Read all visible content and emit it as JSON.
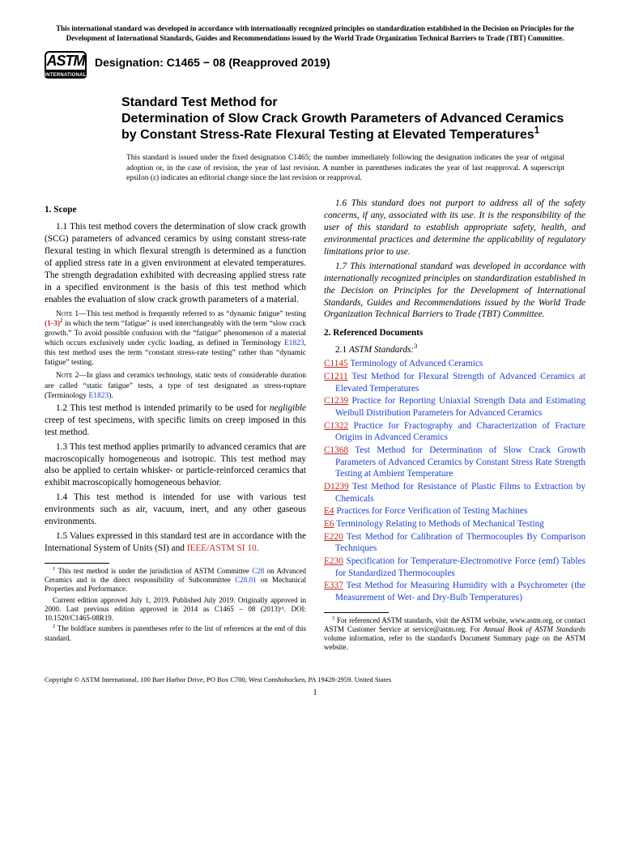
{
  "top_notice": "This international standard was developed in accordance with internationally recognized principles on standardization established in the Decision on Principles for the Development of International Standards, Guides and Recommendations issued by the World Trade Organization Technical Barriers to Trade (TBT) Committee.",
  "logo": {
    "top": "ASTM",
    "bottom": "INTERNATIONAL"
  },
  "designation": "Designation: C1465 − 08 (Reapproved 2019)",
  "title_lead": "Standard Test Method for",
  "title_main": "Determination of Slow Crack Growth Parameters of Advanced Ceramics by Constant Stress-Rate Flexural Testing at Elevated Temperatures",
  "title_sup": "1",
  "issuance": "This standard is issued under the fixed designation C1465; the number immediately following the designation indicates the year of original adoption or, in the case of revision, the year of last revision. A number in parentheses indicates the year of last reapproval. A superscript epsilon (ε) indicates an editorial change since the last revision or reapproval.",
  "sec1_head": "1. Scope",
  "p1_1": "1.1 This test method covers the determination of slow crack growth (SCG) parameters of advanced ceramics by using constant stress-rate flexural testing in which flexural strength is determined as a function of applied stress rate in a given environment at elevated temperatures. The strength degradation exhibited with decreasing applied stress rate in a specified environment is the basis of this test method which enables the evaluation of slow crack growth parameters of a material.",
  "note1_lead": "Note 1—",
  "note1_a": "This test method is frequently referred to as “dynamic fatigue” testing ",
  "note1_ref": "(1-3)",
  "note1_sup": "2",
  "note1_b": " in which the term “fatigue” is used interchangeably with the term “slow crack growth.” To avoid possible confusion with the “fatigue” phenomenon of a material which occurs exclusively under cyclic loading, as defined in Terminology ",
  "note1_link": "E1823",
  "note1_c": ", this test method uses the term “constant stress-rate testing” rather than “dynamic fatigue” testing.",
  "note2_lead": "Note 2—",
  "note2_a": "In glass and ceramics technology, static tests of considerable duration are called “static fatigue” tests, a type of test designated as stress-rupture (Terminology ",
  "note2_link": "E1823",
  "note2_b": ").",
  "p1_2a": "1.2 This test method is intended primarily to be used for ",
  "p1_2_em": "negligible",
  "p1_2b": " creep of test specimens, with specific limits on creep imposed in this test method.",
  "p1_3": "1.3 This test method applies primarily to advanced ceramics that are macroscopically homogeneous and isotropic. This test method may also be applied to certain whisker- or particle-reinforced ceramics that exhibit macroscopically homogeneous behavior.",
  "p1_4": "1.4 This test method is intended for use with various test environments such as air, vacuum, inert, and any other gaseous environments.",
  "p1_5a": "1.5 Values expressed in this standard test are in accordance with the International System of Units (SI) and ",
  "p1_5_link": "IEEE/ASTM SI 10",
  "p1_5b": ".",
  "fn1_a": " This test method is under the jurisdiction of ASTM Committee ",
  "fn1_link1": "C28",
  "fn1_b": " on Advanced Ceramics and is the direct responsibility of Subcommittee ",
  "fn1_link2": "C28.01",
  "fn1_c": " on Mechanical Properties and Performance.",
  "fn1_p2": "Current edition approved July 1, 2019. Published July 2019. Originally approved in 2000. Last previous edition approved in 2014 as C1465 – 08 (2013)ᵋ¹. DOI: 10.1520/C1465-08R19.",
  "fn2": " The boldface numbers in parentheses refer to the list of references at the end of this standard.",
  "p1_6": "1.6 This standard does not purport to address all of the safety concerns, if any, associated with its use. It is the responsibility of the user of this standard to establish appropriate safety, health, and environmental practices and determine the applicability of regulatory limitations prior to use.",
  "p1_7": "1.7 This international standard was developed in accordance with internationally recognized principles on standardization established in the Decision on Principles for the Development of International Standards, Guides and Recommendations issued by the World Trade Organization Technical Barriers to Trade (TBT) Committee.",
  "sec2_head": "2. Referenced Documents",
  "sec2_sub_lead": "2.1 ",
  "sec2_sub_em": "ASTM Standards:",
  "sec2_sub_sup": "3",
  "refs": [
    {
      "code": "C1145",
      "title": "Terminology of Advanced Ceramics"
    },
    {
      "code": "C1211",
      "title": "Test Method for Flexural Strength of Advanced Ceramics at Elevated Temperatures"
    },
    {
      "code": "C1239",
      "title": "Practice for Reporting Uniaxial Strength Data and Estimating Weibull Distribution Parameters for Advanced Ceramics"
    },
    {
      "code": "C1322",
      "title": "Practice for Fractography and Characterization of Fracture Origins in Advanced Ceramics"
    },
    {
      "code": "C1368",
      "title": "Test Method for Determination of Slow Crack Growth Parameters of Advanced Ceramics by Constant Stress Rate Strength Testing at Ambient Temperature"
    },
    {
      "code": "D1239",
      "title": "Test Method for Resistance of Plastic Films to Extraction by Chemicals"
    },
    {
      "code": "E4",
      "title": "Practices for Force Verification of Testing Machines"
    },
    {
      "code": "E6",
      "title": "Terminology Relating to Methods of Mechanical Testing"
    },
    {
      "code": "E220",
      "title": "Test Method for Calibration of Thermocouples By Comparison Techniques"
    },
    {
      "code": "E230",
      "title": "Specification for Temperature-Electromotive Force (emf) Tables for Standardized Thermocouples"
    },
    {
      "code": "E337",
      "title": "Test Method for Measuring Humidity with a Psychrometer (the Measurement of Wet- and Dry-Bulb Temperatures)"
    }
  ],
  "fn3_a": " For referenced ASTM standards, visit the ASTM website, www.astm.org, or contact ASTM Customer Service at service@astm.org. For ",
  "fn3_em": "Annual Book of ASTM Standards",
  "fn3_b": " volume information, refer to the standard's Document Summary page on the ASTM website.",
  "copyright": "Copyright © ASTM International, 100 Barr Harbor Drive, PO Box C700, West Conshohocken, PA 19428-2959. United States",
  "page_no": "1",
  "colors": {
    "link_blue": "#1a3fcf",
    "link_red": "#c12a1f",
    "text": "#000000",
    "bg": "#ffffff"
  }
}
